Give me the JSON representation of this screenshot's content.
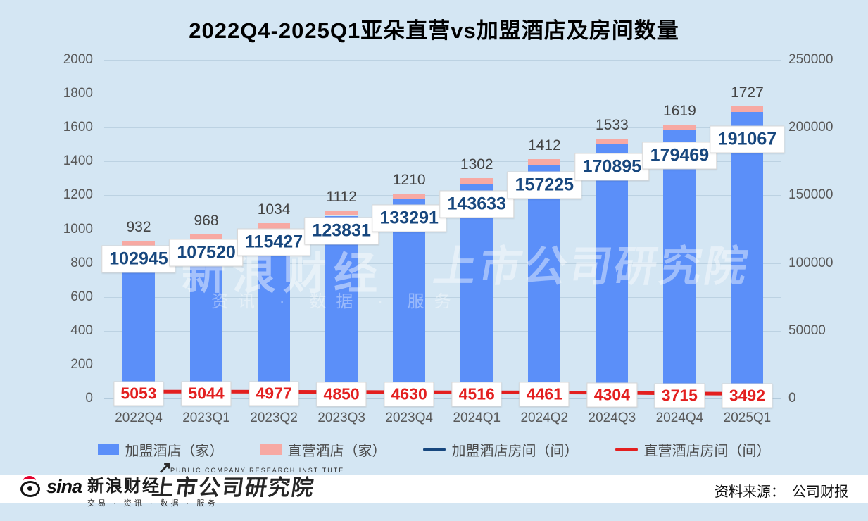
{
  "title": "2022Q4-2025Q1亚朵直营vs加盟酒店及房间数量",
  "chart_data": {
    "type": "combo: stacked-bar + line, dual axis",
    "title": "2022Q4-2025Q1亚朵直营vs加盟酒店及房间数量",
    "categories": [
      "2022Q4",
      "2023Q1",
      "2023Q2",
      "2023Q3",
      "2023Q4",
      "2024Q1",
      "2024Q2",
      "2024Q3",
      "2024Q4",
      "2025Q1"
    ],
    "hotel_totals": [
      932,
      968,
      1034,
      1112,
      1210,
      1302,
      1412,
      1533,
      1619,
      1727
    ],
    "direct_hotel_segment_est": 33,
    "series": [
      {
        "name": "加盟酒店（家）",
        "type": "bar",
        "axis": "left",
        "color": "#5b8ff9"
      },
      {
        "name": "直营酒店（家）",
        "type": "bar",
        "axis": "left",
        "color": "#f7a9a3"
      },
      {
        "name": "加盟酒店房间（间）",
        "type": "line",
        "axis": "right",
        "color": "#17477e",
        "values": [
          102945,
          107520,
          115427,
          123831,
          133291,
          143633,
          157225,
          170895,
          179469,
          191067
        ]
      },
      {
        "name": "直营酒店房间（间）",
        "type": "line",
        "axis": "right",
        "color": "#e31f1f",
        "values": [
          5053,
          5044,
          4977,
          4850,
          4630,
          4516,
          4461,
          4304,
          3715,
          3492
        ]
      }
    ],
    "left_axis": {
      "min": 0,
      "max": 2000,
      "step": 200
    },
    "right_axis": {
      "min": 0,
      "max": 250000,
      "step": 50000
    },
    "grid": true,
    "legend_position": "bottom"
  },
  "watermark": {
    "left": "新浪财经",
    "left_sub": "资讯 · 数据 · 服务",
    "right": "上市公司研究院"
  },
  "footer": {
    "sina_word": "sina",
    "sina_cn": "新浪财经",
    "sina_tagline": "交易 · 资讯 · 数据 · 服务",
    "pcri_en": "PUBLIC COMPANY RESEARCH INSTITUTE",
    "pcri_arrow": "↗",
    "pcri_cn": "上市公司研究院",
    "source_label": "资料来源：",
    "source_value": "公司财报"
  }
}
